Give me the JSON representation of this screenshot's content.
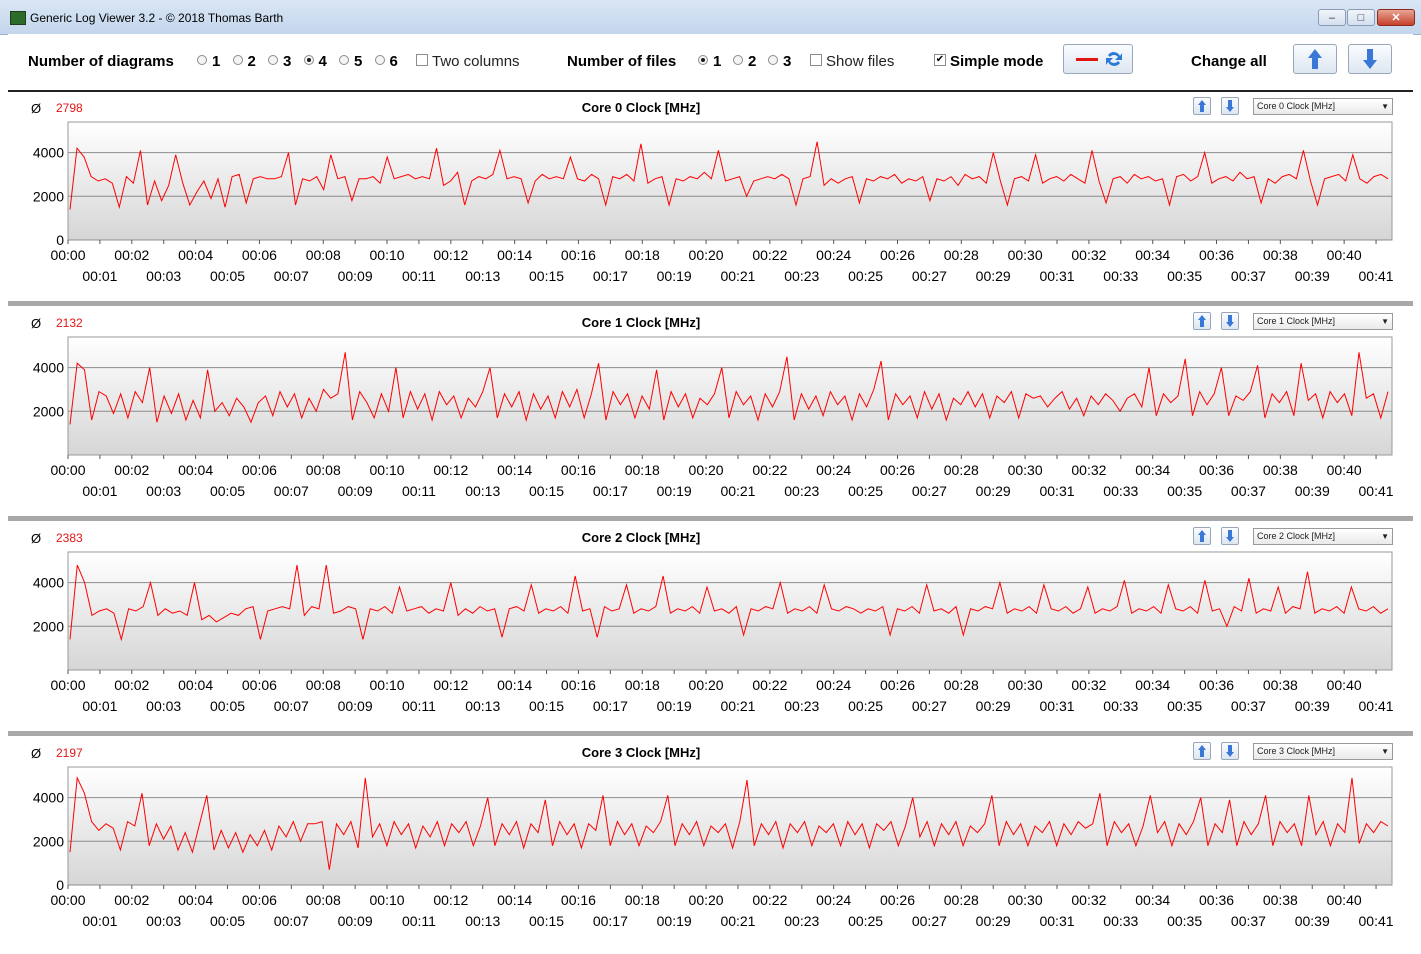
{
  "window": {
    "title": "Generic Log Viewer 3.2 - © 2018 Thomas Barth",
    "minimize": "–",
    "maximize": "□",
    "close": "✕"
  },
  "toolbar": {
    "num_diagrams_label": "Number of diagrams",
    "diagram_options": [
      "1",
      "2",
      "3",
      "4",
      "5",
      "6"
    ],
    "diagram_selected": "4",
    "two_columns_label": "Two columns",
    "two_columns_checked": false,
    "num_files_label": "Number of files",
    "file_options": [
      "1",
      "2",
      "3"
    ],
    "file_selected": "1",
    "show_files_label": "Show files",
    "show_files_checked": false,
    "simple_mode_label": "Simple mode",
    "simple_mode_checked": true,
    "change_all_label": "Change all"
  },
  "colors": {
    "series": "#ff0000",
    "avg": "#e21515",
    "up_arrow": "#3a78d8"
  },
  "x_tick_labels_top": [
    "00:00",
    "00:02",
    "00:04",
    "00:06",
    "00:08",
    "00:10",
    "00:12",
    "00:14",
    "00:16",
    "00:18",
    "00:20",
    "00:22",
    "00:24",
    "00:26",
    "00:28",
    "00:30",
    "00:32",
    "00:34",
    "00:36",
    "00:38",
    "00:40"
  ],
  "x_tick_labels_bottom": [
    "00:01",
    "00:03",
    "00:05",
    "00:07",
    "00:09",
    "00:11",
    "00:13",
    "00:15",
    "00:17",
    "00:19",
    "00:21",
    "00:23",
    "00:25",
    "00:27",
    "00:29",
    "00:31",
    "00:33",
    "00:35",
    "00:37",
    "00:39",
    "00:41"
  ],
  "chart_data": [
    {
      "type": "line",
      "title": "Core 0 Clock [MHz]",
      "selector": "Core 0 Clock [MHz]",
      "average": "2798",
      "ylim": [
        0,
        5400
      ],
      "y_ticks": [
        "4000",
        "2000",
        "0"
      ],
      "grid": true,
      "x_range_minutes": [
        0,
        41.5
      ],
      "series": [
        {
          "values": [
            1400,
            4200,
            3800,
            2900,
            2700,
            2800,
            2600,
            1500,
            2900,
            2600,
            4100,
            1600,
            2700,
            1800,
            2500,
            3900,
            2600,
            1600,
            2200,
            2700,
            1900,
            2800,
            1500,
            2900,
            3000,
            1700,
            2800,
            2900,
            2800,
            2800,
            2900,
            4000,
            1600,
            2800,
            2700,
            2900,
            2300,
            3900,
            2800,
            2900,
            1800,
            2800,
            2800,
            2900,
            2600,
            3800,
            2800,
            2900,
            3000,
            2800,
            2900,
            2800,
            4200,
            2500,
            2700,
            3100,
            1600,
            2700,
            2900,
            2800,
            3000,
            4100,
            2800,
            2900,
            2800,
            1700,
            2700,
            3000,
            2800,
            2900,
            2800,
            3800,
            2800,
            2700,
            3000,
            2800,
            1600,
            2900,
            2800,
            3000,
            2700,
            4400,
            2600,
            2800,
            2900,
            1600,
            2800,
            2700,
            2900,
            2800,
            3100,
            2800,
            4100,
            2700,
            2800,
            2900,
            2000,
            2700,
            2800,
            2900,
            2800,
            3000,
            2800,
            1600,
            2800,
            2900,
            4500,
            2500,
            2800,
            2600,
            2800,
            2900,
            1700,
            2800,
            2700,
            2900,
            2800,
            3000,
            2600,
            2800,
            2700,
            2900,
            1800,
            2800,
            2700,
            2900,
            2500,
            3000,
            2800,
            2900,
            2600,
            4000,
            2700,
            1600,
            2800,
            2900,
            2700,
            3900,
            2600,
            2800,
            2900,
            2700,
            3000,
            2800,
            2600,
            4100,
            2700,
            1700,
            2800,
            2900,
            2600,
            3000,
            2800,
            2900,
            2700,
            2800,
            1600,
            2900,
            3000,
            2700,
            2900,
            4000,
            2600,
            2800,
            2900,
            2700,
            3100,
            2800,
            2900,
            1700,
            2800,
            2600,
            2900,
            3000,
            2800,
            4100,
            2700,
            1600,
            2800,
            2900,
            3000,
            2700,
            3900,
            2800,
            2600,
            2900,
            3000,
            2800
          ]
        }
      ]
    },
    {
      "type": "line",
      "title": "Core 1 Clock [MHz]",
      "selector": "Core 1 Clock [MHz]",
      "average": "2132",
      "ylim": [
        0,
        5400
      ],
      "y_ticks": [
        "4000",
        "2000"
      ],
      "grid": true,
      "x_range_minutes": [
        0,
        41.5
      ],
      "series": [
        {
          "values": [
            1400,
            4200,
            3900,
            1600,
            2900,
            2700,
            1900,
            2800,
            1700,
            2900,
            2400,
            4000,
            1500,
            2700,
            1900,
            2800,
            1600,
            2500,
            1700,
            3900,
            2000,
            2400,
            1800,
            2600,
            2200,
            1500,
            2400,
            2700,
            1800,
            2900,
            2200,
            2800,
            1700,
            2600,
            2000,
            3000,
            2600,
            2800,
            4700,
            1600,
            2900,
            2400,
            1700,
            2800,
            2000,
            4000,
            1700,
            2900,
            2100,
            2800,
            1600,
            2900,
            2300,
            2700,
            1700,
            2600,
            2200,
            2900,
            4000,
            1700,
            2800,
            2200,
            2900,
            1600,
            2800,
            2100,
            2700,
            1700,
            2900,
            2200,
            3000,
            1700,
            2800,
            4200,
            1600,
            2900,
            2300,
            2800,
            1700,
            2700,
            2100,
            3900,
            1600,
            2900,
            2200,
            2800,
            1700,
            2600,
            2300,
            2800,
            4000,
            1700,
            2900,
            2300,
            2700,
            1600,
            2800,
            2200,
            2900,
            4500,
            1600,
            2800,
            2100,
            2700,
            1800,
            2900,
            2300,
            2700,
            1600,
            2800,
            2200,
            3000,
            4300,
            1600,
            2800,
            2300,
            2700,
            1700,
            2900,
            2100,
            2800,
            1600,
            2600,
            2300,
            2900,
            2200,
            2800,
            1700,
            2700,
            2400,
            2900,
            1700,
            2800,
            2600,
            2700,
            2200,
            2600,
            2900,
            2100,
            2600,
            1800,
            2700,
            2300,
            2800,
            2500,
            2000,
            2600,
            2800,
            2200,
            4000,
            1800,
            2800,
            2400,
            2700,
            4400,
            1800,
            2900,
            2300,
            2800,
            4000,
            1800,
            2700,
            2500,
            2900,
            4100,
            1700,
            2800,
            2400,
            2900,
            1800,
            4200,
            2500,
            2800,
            1700,
            2900,
            2400,
            2800,
            1800,
            4700,
            2600,
            2800,
            1700,
            2900
          ]
        }
      ]
    },
    {
      "type": "line",
      "title": "Core 2 Clock [MHz]",
      "selector": "Core 2 Clock [MHz]",
      "average": "2383",
      "ylim": [
        0,
        5400
      ],
      "y_ticks": [
        "4000",
        "2000"
      ],
      "grid": true,
      "x_range_minutes": [
        0,
        41.5
      ],
      "series": [
        {
          "values": [
            1400,
            4800,
            4000,
            2500,
            2700,
            2800,
            2600,
            1400,
            2800,
            2700,
            2900,
            4000,
            2500,
            2800,
            2600,
            2700,
            2500,
            4000,
            2300,
            2500,
            2200,
            2400,
            2600,
            2500,
            2800,
            2900,
            1400,
            2700,
            2800,
            2900,
            2800,
            4800,
            2500,
            2900,
            2800,
            4800,
            2600,
            2700,
            2900,
            2800,
            1400,
            2800,
            2700,
            2900,
            2600,
            3800,
            2700,
            2800,
            2900,
            2600,
            2800,
            2700,
            4000,
            2500,
            2800,
            2600,
            2900,
            2700,
            2800,
            1500,
            2800,
            2900,
            2700,
            3900,
            2600,
            2800,
            2700,
            2900,
            2600,
            4300,
            2700,
            2800,
            1500,
            2900,
            2700,
            2800,
            3900,
            2600,
            2800,
            2700,
            2900,
            4300,
            2600,
            2800,
            2700,
            2900,
            2600,
            3800,
            2700,
            2800,
            2600,
            2900,
            1600,
            2800,
            2700,
            2900,
            2800,
            4000,
            2600,
            2800,
            2700,
            2900,
            2600,
            3900,
            2800,
            2700,
            2900,
            2800,
            2600,
            2800,
            2700,
            2900,
            1600,
            2800,
            2700,
            2900,
            2600,
            3900,
            2700,
            2800,
            2600,
            2900,
            1600,
            2800,
            2700,
            2900,
            2800,
            4000,
            2600,
            2800,
            2700,
            2900,
            2600,
            3900,
            2800,
            2700,
            2900,
            2600,
            2800,
            3800,
            2600,
            2800,
            2700,
            2900,
            4100,
            2600,
            2800,
            2700,
            2900,
            2600,
            3900,
            2800,
            2700,
            2900,
            2600,
            4100,
            2700,
            2800,
            2000,
            2900,
            2700,
            4200,
            2600,
            2800,
            2700,
            3800,
            2600,
            2900,
            2800,
            4500,
            2600,
            2800,
            2700,
            2900,
            2600,
            3800,
            2800,
            2700,
            2900,
            2600,
            2800
          ]
        }
      ]
    },
    {
      "type": "line",
      "title": "Core 3 Clock [MHz]",
      "selector": "Core 3 Clock [MHz]",
      "average": "2197",
      "ylim": [
        0,
        5400
      ],
      "y_ticks": [
        "4000",
        "2000",
        "0"
      ],
      "grid": true,
      "x_range_minutes": [
        0,
        41.5
      ],
      "series": [
        {
          "values": [
            1500,
            4900,
            4200,
            2900,
            2500,
            2800,
            2600,
            1600,
            2900,
            2700,
            4200,
            1800,
            2800,
            2100,
            2700,
            1600,
            2400,
            1500,
            2800,
            4100,
            1600,
            2500,
            1700,
            2400,
            1500,
            2300,
            1800,
            2500,
            1600,
            2700,
            2200,
            2900,
            2000,
            2800,
            2800,
            2900,
            700,
            2800,
            2300,
            2900,
            1700,
            4900,
            2200,
            2800,
            1800,
            2900,
            2300,
            2800,
            1700,
            2700,
            2200,
            2900,
            1800,
            2800,
            2400,
            2900,
            1800,
            2700,
            4000,
            1800,
            2800,
            2300,
            2900,
            1700,
            2800,
            2400,
            3900,
            1800,
            2900,
            2300,
            2800,
            1700,
            2800,
            2500,
            4100,
            1800,
            2900,
            2300,
            2800,
            1800,
            2700,
            2400,
            2900,
            4100,
            1800,
            2800,
            2300,
            2900,
            1800,
            2700,
            2400,
            2800,
            1700,
            2900,
            4800,
            1800,
            2800,
            2300,
            2900,
            1700,
            2800,
            2400,
            2900,
            1800,
            2700,
            2400,
            2800,
            1800,
            2900,
            2300,
            2800,
            1700,
            2800,
            2500,
            2900,
            1800,
            2700,
            4000,
            2200,
            2900,
            1800,
            2800,
            2300,
            2900,
            1800,
            2700,
            2400,
            2800,
            4100,
            1800,
            2900,
            2300,
            2800,
            1800,
            2700,
            2400,
            2900,
            1800,
            2800,
            2300,
            2900,
            2600,
            2800,
            4200,
            1800,
            2900,
            2400,
            2800,
            1800,
            2700,
            4100,
            2400,
            2900,
            1800,
            2800,
            2300,
            2900,
            4000,
            1800,
            2800,
            2400,
            3900,
            1800,
            2900,
            2300,
            2800,
            4100,
            1800,
            2900,
            2400,
            2800,
            1800,
            4100,
            2300,
            2900,
            1800,
            2800,
            2400,
            4900,
            1900,
            2800,
            2400,
            2900,
            2700
          ]
        }
      ]
    }
  ]
}
